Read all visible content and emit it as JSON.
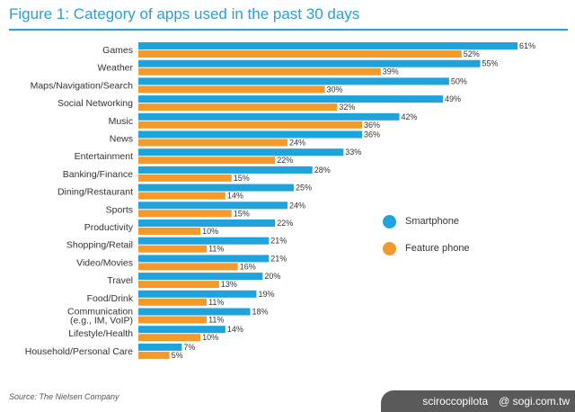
{
  "figure": {
    "title": "Figure 1: Category of apps used in the past 30 days",
    "source": "Source: The Nielsen Company"
  },
  "watermark": {
    "author": "sciroccopilota",
    "site": "@ sogi.com.tw"
  },
  "colors": {
    "title": "#2a9fd6",
    "smartphone": "#1ea3dc",
    "feature_phone": "#f39a2b"
  },
  "chart_data": {
    "type": "bar",
    "orientation": "horizontal",
    "title": "Figure 1: Category of apps used in the past 30 days",
    "value_suffix": "%",
    "xlim": [
      0,
      61
    ],
    "grid": false,
    "legend_position": "right",
    "categories": [
      "Games",
      "Weather",
      "Maps/Navigation/Search",
      "Social Networking",
      "Music",
      "News",
      "Entertainment",
      "Banking/Finance",
      "Dining/Restaurant",
      "Sports",
      "Productivity",
      "Shopping/Retail",
      "Video/Movies",
      "Travel",
      "Food/Drink",
      "Communication\n(e.g., IM, VoIP)",
      "Lifestyle/Health",
      "Household/Personal Care"
    ],
    "series": [
      {
        "name": "Smartphone",
        "values": [
          61,
          55,
          50,
          49,
          42,
          36,
          33,
          28,
          25,
          24,
          22,
          21,
          21,
          20,
          19,
          18,
          14,
          7
        ]
      },
      {
        "name": "Feature phone",
        "values": [
          52,
          39,
          30,
          32,
          36,
          24,
          22,
          15,
          14,
          15,
          10,
          11,
          16,
          13,
          11,
          11,
          10,
          5
        ]
      }
    ]
  }
}
